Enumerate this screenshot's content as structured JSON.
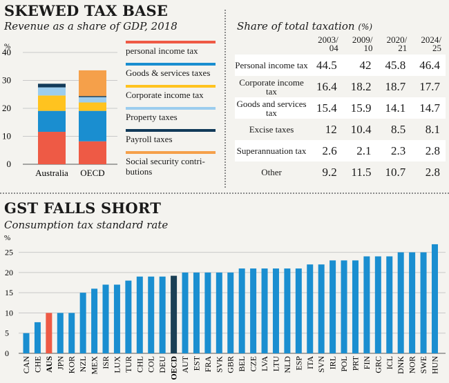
{
  "section1": {
    "title": "SKEWED TAX BASE",
    "subtitle": "Revenue as a share of GDP, 2018",
    "table_title": "Share of total taxation",
    "table_unit": "(%)"
  },
  "section2": {
    "title": "GST FALLS SHORT",
    "subtitle": "Consumption tax standard rate"
  },
  "colors": {
    "personal": "#ee5a45",
    "goods": "#1a8ed0",
    "corporate": "#ffc31f",
    "property": "#9ccdee",
    "payroll": "#123a59",
    "social": "#f5a04a",
    "bar_default": "#1a8ed0",
    "bar_aus": "#ee5a45",
    "bar_oecd": "#1a3f55"
  },
  "chart_data": [
    {
      "type": "bar",
      "stacked": true,
      "ylabel": "%",
      "ylim": [
        0,
        40
      ],
      "yticks": [
        0,
        10,
        20,
        30,
        40
      ],
      "categories": [
        "Australia",
        "OECD"
      ],
      "series": [
        {
          "name": "personal income tax",
          "values": [
            11.6,
            8.2
          ]
        },
        {
          "name": "Goods & services taxes",
          "values": [
            7.5,
            10.9
          ]
        },
        {
          "name": "Corporate income tax",
          "values": [
            5.5,
            3.0
          ]
        },
        {
          "name": "Property taxes",
          "values": [
            2.9,
            1.9
          ]
        },
        {
          "name": "Payroll taxes",
          "values": [
            1.3,
            0.4
          ]
        },
        {
          "name": "Social security contri­butions",
          "values": [
            0,
            9.2
          ]
        }
      ],
      "legend_position": "right"
    },
    {
      "type": "table",
      "columns": [
        "2003/\n04",
        "2009/\n10",
        "2020/\n21",
        "2024/\n25"
      ],
      "rows": [
        {
          "label": "Personal income tax",
          "values": [
            "44.5",
            "42",
            "45.8",
            "46.4"
          ]
        },
        {
          "label": "Corporate income tax",
          "values": [
            "16.4",
            "18.2",
            "18.7",
            "17.7"
          ]
        },
        {
          "label": "Goods and ser­vices tax",
          "values": [
            "15.4",
            "15.9",
            "14.1",
            "14.7"
          ]
        },
        {
          "label": "Excise taxes",
          "values": [
            "12",
            "10.4",
            "8.5",
            "8.1"
          ]
        },
        {
          "label": "Superannuation tax",
          "values": [
            "2.6",
            "2.1",
            "2.3",
            "2.8"
          ]
        },
        {
          "label": "Other",
          "values": [
            "9.2",
            "11.5",
            "10.7",
            "2.8"
          ]
        }
      ]
    },
    {
      "type": "bar",
      "ylabel": "%",
      "ylim": [
        0,
        27.5
      ],
      "yticks": [
        0,
        5,
        10,
        15,
        20,
        25
      ],
      "categories": [
        "CAN",
        "CHE",
        "AUS",
        "JPN",
        "KOR",
        "NZL",
        "MEX",
        "ISR",
        "LUX",
        "TUR",
        "CHL",
        "COL",
        "DEU",
        "OECD",
        "AUT",
        "EST",
        "FRA",
        "SVK",
        "GBR",
        "BEL",
        "CZE",
        "LVA",
        "LTU",
        "NLD",
        "ESP",
        "ITA",
        "SVN",
        "IRL",
        "POL",
        "PRT",
        "FIN",
        "GRC",
        "ICL",
        "DNK",
        "NOR",
        "SWE",
        "HUN"
      ],
      "values": [
        5,
        7.7,
        10,
        10,
        10,
        15,
        16,
        17,
        17,
        18,
        19,
        19,
        19,
        19.2,
        20,
        20,
        20,
        20,
        20,
        21,
        21,
        21,
        21,
        21,
        21,
        22,
        22,
        23,
        23,
        23,
        24,
        24,
        24,
        25,
        25,
        25,
        27
      ],
      "highlight": {
        "AUS": "bar_aus",
        "OECD": "bar_oecd"
      },
      "grid": true
    }
  ]
}
